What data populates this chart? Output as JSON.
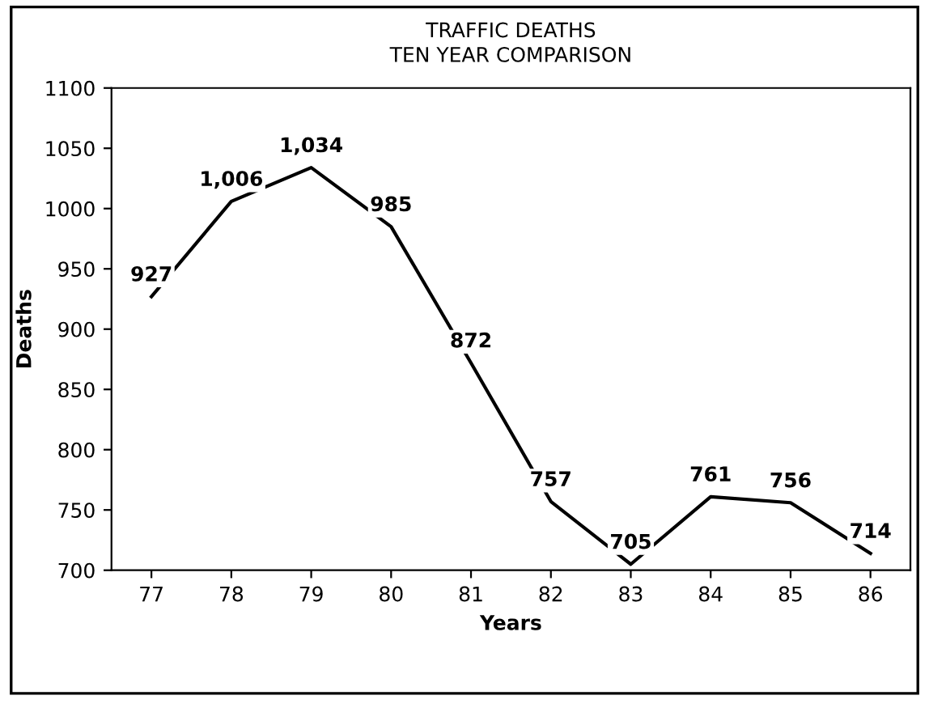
{
  "chart_data": {
    "type": "line",
    "title": "TRAFFIC DEATHS",
    "subtitle": "TEN YEAR COMPARISON",
    "xlabel": "Years",
    "ylabel": "Deaths",
    "categories": [
      "77",
      "78",
      "79",
      "80",
      "81",
      "82",
      "83",
      "84",
      "85",
      "86"
    ],
    "series": [
      {
        "color": "#000000",
        "values": [
          927,
          1006,
          1034,
          985,
          872,
          757,
          705,
          761,
          756,
          714
        ],
        "value_labels": [
          "927",
          "1,006",
          "1,034",
          "985",
          "872",
          "757",
          "705",
          "761",
          "756",
          "714"
        ]
      }
    ],
    "ylim": [
      700,
      1100
    ],
    "yticks": [
      700,
      750,
      800,
      850,
      900,
      950,
      1000,
      1050,
      1100
    ],
    "grid": false,
    "legend": false,
    "marker": "none",
    "line_style": "solid"
  }
}
